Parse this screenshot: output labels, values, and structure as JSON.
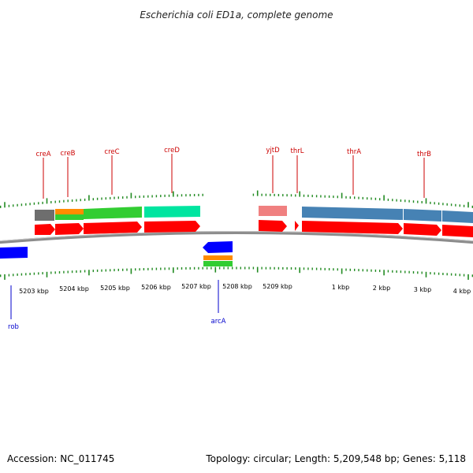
{
  "title": "Escherichia coli ED1a, complete genome",
  "footer": {
    "accession": "Accession: NC_011745",
    "summary": "Topology: circular; Length: 5,209,548 bp; Genes: 5,118"
  },
  "colors": {
    "forward_label": "#cc0000",
    "reverse_label": "#0000cc",
    "cds_forward": "#ff0000",
    "cds_reverse": "#0000ff",
    "tick": "#228b22",
    "backbone": "#808080",
    "cog_gray": "#707070",
    "cog_orange": "#ff8c00",
    "cog_green": "#32cd32",
    "cog_teal": "#00e5a0",
    "cog_pink": "#f08080",
    "cog_steelblue": "#4682b4"
  },
  "scale_labels": [
    {
      "text": "5203 kbp"
    },
    {
      "text": "5204 kbp"
    },
    {
      "text": "5205 kbp"
    },
    {
      "text": "5206 kbp"
    },
    {
      "text": "5207 kbp"
    },
    {
      "text": "5208 kbp"
    },
    {
      "text": "5209 kbp"
    },
    {
      "text": "1 kbp"
    },
    {
      "text": "2 kbp"
    },
    {
      "text": "3 kbp"
    },
    {
      "text": "4 kbp"
    }
  ],
  "gene_labels_forward": [
    {
      "text": "creA"
    },
    {
      "text": "creB"
    },
    {
      "text": "creC"
    },
    {
      "text": "creD"
    },
    {
      "text": "yjtD"
    },
    {
      "text": "thrL"
    },
    {
      "text": "thrA"
    },
    {
      "text": "thrB"
    }
  ],
  "gene_labels_reverse": [
    {
      "text": "rob"
    },
    {
      "text": "arcA"
    }
  ],
  "icons": {
    "map": "circular-genome-map-icon"
  }
}
